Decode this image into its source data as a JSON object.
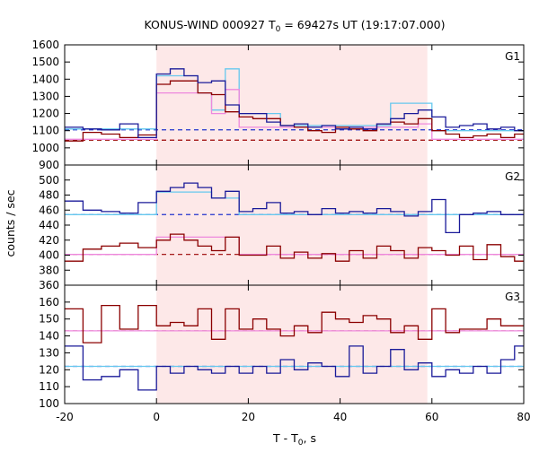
{
  "title_prefix": "KONUS-WIND 000927 T",
  "title_sub": "0",
  "title_suffix": " = 69427s UT (19:17:07.000)",
  "xlabel_prefix": "T - T",
  "xlabel_sub": "0",
  "xlabel_suffix": ", s",
  "ylabel": "counts / sec",
  "colors": {
    "shade": "#fde8e8",
    "blue": "#1a1a99",
    "red": "#8b0000",
    "cyan": "#66c8ee",
    "pink": "#ee88dd",
    "blue_dashed": "#2233cc",
    "red_dashed": "#990000"
  },
  "chart_data": {
    "type": "line",
    "xlim": [
      -20,
      80
    ],
    "xticks": [
      -20,
      0,
      20,
      40,
      60,
      80
    ],
    "shade_interval": [
      0,
      59
    ],
    "grid": false,
    "panels": [
      {
        "label": "G1",
        "ylim": [
          900,
          1600
        ],
        "yticks": [
          900,
          1000,
          1100,
          1200,
          1300,
          1400,
          1500,
          1600
        ],
        "edges": [
          -20,
          -16,
          -12,
          -8,
          -4,
          0,
          3,
          6,
          9,
          12,
          15,
          18,
          21,
          24,
          27,
          30,
          33,
          36,
          39,
          42,
          45,
          48,
          51,
          54,
          57,
          60,
          63,
          66,
          69,
          72,
          75,
          78,
          80
        ],
        "blue": [
          1120,
          1110,
          1105,
          1140,
          1060,
          1430,
          1460,
          1420,
          1380,
          1390,
          1250,
          1200,
          1200,
          1150,
          1130,
          1140,
          1120,
          1130,
          1110,
          1120,
          1110,
          1140,
          1170,
          1200,
          1220,
          1180,
          1120,
          1130,
          1140,
          1110,
          1120,
          1100
        ],
        "red": [
          1040,
          1090,
          1080,
          1060,
          1075,
          1370,
          1390,
          1390,
          1320,
          1310,
          1210,
          1180,
          1170,
          1170,
          1130,
          1120,
          1100,
          1090,
          1120,
          1110,
          1100,
          1140,
          1150,
          1140,
          1170,
          1100,
          1080,
          1060,
          1070,
          1080,
          1060,
          1080
        ],
        "cyan_steps": [
          [
            -20,
            1110
          ],
          [
            0,
            1420
          ],
          [
            6,
            1420
          ],
          [
            9,
            1320
          ],
          [
            12,
            1220
          ],
          [
            15,
            1460
          ],
          [
            18,
            1200
          ],
          [
            24,
            1200
          ],
          [
            27,
            1130
          ],
          [
            48,
            1130
          ],
          [
            51,
            1260
          ],
          [
            57,
            1260
          ],
          [
            60,
            1100
          ],
          [
            80,
            1100
          ]
        ],
        "pink_steps": [
          [
            -20,
            1050
          ],
          [
            0,
            1320
          ],
          [
            9,
            1320
          ],
          [
            12,
            1200
          ],
          [
            15,
            1340
          ],
          [
            18,
            1120
          ],
          [
            54,
            1120
          ],
          [
            57,
            1140
          ],
          [
            60,
            1050
          ],
          [
            80,
            1050
          ]
        ],
        "blue_level": 1105,
        "red_level": 1045
      },
      {
        "label": "G2",
        "ylim": [
          360,
          520
        ],
        "yticks": [
          360,
          380,
          400,
          420,
          440,
          460,
          480,
          500
        ],
        "edges": [
          -20,
          -16,
          -12,
          -8,
          -4,
          0,
          3,
          6,
          9,
          12,
          15,
          18,
          21,
          24,
          27,
          30,
          33,
          36,
          39,
          42,
          45,
          48,
          51,
          54,
          57,
          60,
          63,
          66,
          69,
          72,
          75,
          78,
          80
        ],
        "blue": [
          472,
          460,
          458,
          456,
          470,
          485,
          490,
          496,
          490,
          476,
          485,
          458,
          462,
          470,
          456,
          458,
          454,
          462,
          456,
          458,
          456,
          462,
          458,
          452,
          458,
          474,
          430,
          454,
          456,
          458,
          454,
          454
        ],
        "red": [
          392,
          408,
          412,
          416,
          410,
          420,
          428,
          420,
          412,
          406,
          424,
          400,
          400,
          412,
          396,
          404,
          396,
          402,
          392,
          406,
          396,
          412,
          406,
          396,
          410,
          406,
          400,
          412,
          394,
          414,
          398,
          392
        ],
        "cyan_steps": [
          [
            -20,
            454
          ],
          [
            0,
            484
          ],
          [
            9,
            484
          ],
          [
            12,
            476
          ],
          [
            15,
            476
          ],
          [
            18,
            454
          ],
          [
            80,
            454
          ]
        ],
        "pink_steps": [
          [
            -20,
            401
          ],
          [
            0,
            424
          ],
          [
            15,
            424
          ],
          [
            18,
            401
          ],
          [
            80,
            401
          ]
        ],
        "blue_level": 454,
        "red_level": 401
      },
      {
        "label": "G3",
        "ylim": [
          100,
          170
        ],
        "yticks": [
          100,
          110,
          120,
          130,
          140,
          150,
          160
        ],
        "edges": [
          -20,
          -16,
          -12,
          -8,
          -4,
          0,
          3,
          6,
          9,
          12,
          15,
          18,
          21,
          24,
          27,
          30,
          33,
          36,
          39,
          42,
          45,
          48,
          51,
          54,
          57,
          60,
          63,
          66,
          69,
          72,
          75,
          78,
          80
        ],
        "blue": [
          134,
          114,
          116,
          120,
          108,
          122,
          118,
          122,
          120,
          118,
          122,
          118,
          122,
          118,
          126,
          120,
          124,
          122,
          116,
          134,
          118,
          122,
          132,
          120,
          124,
          116,
          120,
          118,
          122,
          118,
          126,
          134
        ],
        "red": [
          156,
          136,
          158,
          144,
          158,
          146,
          148,
          146,
          156,
          138,
          156,
          144,
          150,
          144,
          140,
          146,
          142,
          154,
          150,
          148,
          152,
          150,
          142,
          146,
          138,
          156,
          142,
          144,
          144,
          150,
          146,
          146
        ],
        "cyan_steps": [
          [
            -20,
            122
          ],
          [
            80,
            122
          ]
        ],
        "pink_steps": [
          [
            -20,
            143
          ],
          [
            80,
            143
          ]
        ],
        "blue_level": 122,
        "red_level": 143
      }
    ]
  }
}
